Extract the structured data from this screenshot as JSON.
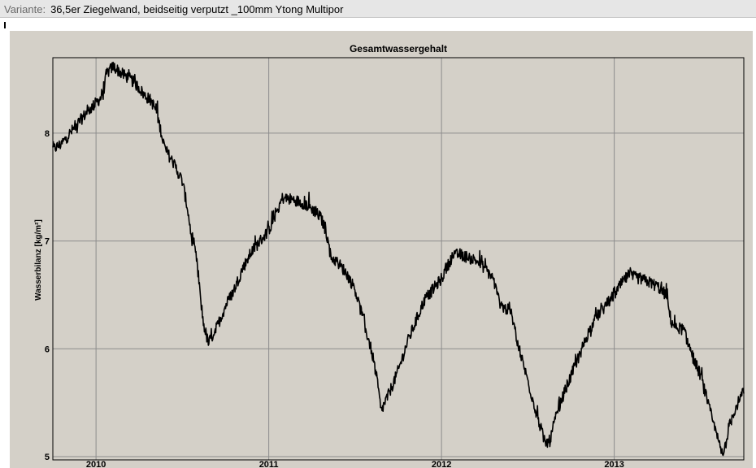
{
  "variant": {
    "label": "Variante:",
    "value": "36,5er Ziegelwand, beidseitig verputzt _100mm Ytong Multipor"
  },
  "chart_data": {
    "type": "line",
    "title": "Gesamtwassergehalt",
    "ylabel": "Wasserbilanz [kg/m²]",
    "xlabel": "",
    "xlim": [
      2009.75,
      2013.75
    ],
    "ylim": [
      4.97,
      8.7
    ],
    "x_ticks": [
      "2010",
      "2011",
      "2012",
      "2013"
    ],
    "y_ticks": [
      "5",
      "6",
      "7",
      "8"
    ],
    "grid": true,
    "colors": {
      "plot_bg": "#d4d0c8",
      "line": "#000000",
      "grid": "#8c8c8c"
    },
    "series": [
      {
        "name": "",
        "x": [
          2009.75,
          2009.8,
          2009.85,
          2009.9,
          2009.95,
          2010.0,
          2010.04,
          2010.06,
          2010.1,
          2010.15,
          2010.2,
          2010.25,
          2010.28,
          2010.32,
          2010.35,
          2010.4,
          2010.45,
          2010.48,
          2010.5,
          2010.53,
          2010.55,
          2010.58,
          2010.6,
          2010.62,
          2010.65,
          2010.7,
          2010.75,
          2010.8,
          2010.85,
          2010.9,
          2010.95,
          2011.0,
          2011.04,
          2011.08,
          2011.15,
          2011.2,
          2011.25,
          2011.3,
          2011.33,
          2011.36,
          2011.4,
          2011.45,
          2011.5,
          2011.55,
          2011.6,
          2011.63,
          2011.65,
          2011.7,
          2011.75,
          2011.8,
          2011.85,
          2011.9,
          2011.95,
          2012.0,
          2012.03,
          2012.06,
          2012.1,
          2012.15,
          2012.2,
          2012.25,
          2012.3,
          2012.33,
          2012.36,
          2012.4,
          2012.45,
          2012.5,
          2012.55,
          2012.6,
          2012.63,
          2012.65,
          2012.7,
          2012.75,
          2012.8,
          2012.85,
          2012.9,
          2012.95,
          2013.0,
          2013.04,
          2013.08,
          2013.15,
          2013.2,
          2013.25,
          2013.3,
          2013.33,
          2013.36,
          2013.4,
          2013.45,
          2013.5,
          2013.55,
          2013.6,
          2013.63,
          2013.66,
          2013.7,
          2013.75
        ],
        "values": [
          7.85,
          7.9,
          8.0,
          8.1,
          8.2,
          8.28,
          8.35,
          8.55,
          8.62,
          8.55,
          8.5,
          8.42,
          8.35,
          8.3,
          8.2,
          7.85,
          7.72,
          7.62,
          7.55,
          7.3,
          7.05,
          6.85,
          6.55,
          6.25,
          6.05,
          6.2,
          6.4,
          6.55,
          6.75,
          6.9,
          7.0,
          7.1,
          7.25,
          7.4,
          7.38,
          7.35,
          7.3,
          7.22,
          7.1,
          6.85,
          6.8,
          6.7,
          6.55,
          6.25,
          5.95,
          5.68,
          5.42,
          5.6,
          5.8,
          6.05,
          6.25,
          6.45,
          6.55,
          6.65,
          6.75,
          6.85,
          6.88,
          6.85,
          6.82,
          6.75,
          6.65,
          6.45,
          6.38,
          6.35,
          6.0,
          5.7,
          5.4,
          5.12,
          5.15,
          5.3,
          5.55,
          5.75,
          5.95,
          6.15,
          6.3,
          6.4,
          6.5,
          6.6,
          6.68,
          6.65,
          6.62,
          6.58,
          6.5,
          6.25,
          6.2,
          6.18,
          5.95,
          5.75,
          5.45,
          5.15,
          5.0,
          5.25,
          5.45,
          5.6
        ]
      }
    ]
  }
}
